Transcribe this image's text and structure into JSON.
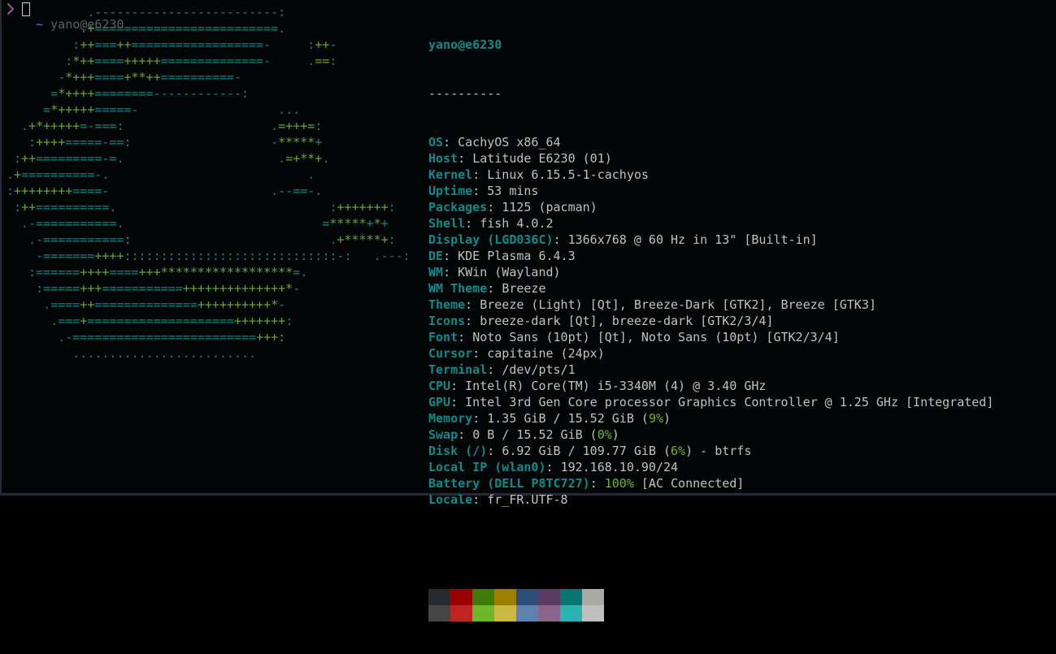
{
  "colors": {
    "bg": "#020506",
    "fg": "#bec3be",
    "teal": "#0c8b8b",
    "green": "#6fb71f",
    "artteal": "#0f8787",
    "artgreen": "#65aa1c",
    "dim": "#58625f",
    "blue": "#4b7fc9",
    "magenta": "#9f549b",
    "cursor": "#c9cccc",
    "border": "#222b36"
  },
  "terminal": {
    "fetch": {
      "title": "yano@e6230",
      "separator": "----------"
    },
    "info": [
      {
        "label": "OS",
        "value": [
          [
            "fg",
            "CachyOS x86_64"
          ]
        ]
      },
      {
        "label": "Host",
        "value": [
          [
            "fg",
            "Latitude E6230 (01)"
          ]
        ]
      },
      {
        "label": "Kernel",
        "value": [
          [
            "fg",
            "Linux 6.15.5-1-cachyos"
          ]
        ]
      },
      {
        "label": "Uptime",
        "value": [
          [
            "fg",
            "53 mins"
          ]
        ]
      },
      {
        "label": "Packages",
        "value": [
          [
            "fg",
            "1125 (pacman)"
          ]
        ]
      },
      {
        "label": "Shell",
        "value": [
          [
            "fg",
            "fish 4.0.2"
          ]
        ]
      },
      {
        "label": "Display (LGD036C)",
        "value": [
          [
            "fg",
            "1366x768 @ 60 Hz in 13\" [Built-in]"
          ]
        ]
      },
      {
        "label": "DE",
        "value": [
          [
            "fg",
            "KDE Plasma 6.4.3"
          ]
        ]
      },
      {
        "label": "WM",
        "value": [
          [
            "fg",
            "KWin (Wayland)"
          ]
        ]
      },
      {
        "label": "WM Theme",
        "value": [
          [
            "fg",
            "Breeze"
          ]
        ]
      },
      {
        "label": "Theme",
        "value": [
          [
            "fg",
            "Breeze (Light) [Qt], Breeze-Dark [GTK2], Breeze [GTK3]"
          ]
        ]
      },
      {
        "label": "Icons",
        "value": [
          [
            "fg",
            "breeze-dark [Qt], breeze-dark [GTK2/3/4]"
          ]
        ]
      },
      {
        "label": "Font",
        "value": [
          [
            "fg",
            "Noto Sans (10pt) [Qt], Noto Sans (10pt) [GTK2/3/4]"
          ]
        ]
      },
      {
        "label": "Cursor",
        "value": [
          [
            "fg",
            "capitaine (24px)"
          ]
        ]
      },
      {
        "label": "Terminal",
        "value": [
          [
            "fg",
            "/dev/pts/1"
          ]
        ]
      },
      {
        "label": "CPU",
        "value": [
          [
            "fg",
            "Intel(R) Core(TM) i5-3340M (4) @ 3.40 GHz"
          ]
        ]
      },
      {
        "label": "GPU",
        "value": [
          [
            "fg",
            "Intel 3rd Gen Core processor Graphics Controller @ 1.25 GHz [Integrated]"
          ]
        ]
      },
      {
        "label": "Memory",
        "value": [
          [
            "fg",
            "1.35 GiB / 15.52 GiB ("
          ],
          [
            "green",
            "9%"
          ],
          [
            "fg",
            ")"
          ]
        ]
      },
      {
        "label": "Swap",
        "value": [
          [
            "fg",
            "0 B / 15.52 GiB ("
          ],
          [
            "green",
            "0%"
          ],
          [
            "fg",
            ")"
          ]
        ]
      },
      {
        "label": "Disk (/)",
        "value": [
          [
            "fg",
            "6.92 GiB / 109.77 GiB ("
          ],
          [
            "green",
            "6%"
          ],
          [
            "fg",
            ") - btrfs"
          ]
        ]
      },
      {
        "label": "Local IP (wlan0)",
        "value": [
          [
            "fg",
            "192.168.10.90/24"
          ]
        ]
      },
      {
        "label": "Battery (DELL P8TC727)",
        "value": [
          [
            "green",
            "100%"
          ],
          [
            "fg",
            " [AC Connected]"
          ]
        ]
      },
      {
        "label": "Locale",
        "value": [
          [
            "fg",
            "fr_FR.UTF-8"
          ]
        ]
      }
    ],
    "palette": [
      [
        "#252c2f",
        "#9b0000",
        "#3e7b07",
        "#9c7e00",
        "#2a4f7c",
        "#5a3c62",
        "#097571",
        "#a8aaa5"
      ],
      [
        "#454545",
        "#bf2421",
        "#6eb62a",
        "#cbb842",
        "#5e82ad",
        "#8a6589",
        "#2bb3b2",
        "#bfbfbf"
      ]
    ],
    "prompt": {
      "cwd": "~",
      "user_host": "yano@e6230",
      "symbol": "❯"
    },
    "art": [
      [
        [
          "d",
          "           ."
        ],
        [
          "t",
          "-------------------------:"
        ]
      ],
      [
        [
          "d",
          "          ."
        ],
        [
          "g",
          "+"
        ],
        [
          "t",
          "========================="
        ],
        [
          "d",
          "."
        ]
      ],
      [
        [
          "t",
          "         :"
        ],
        [
          "g",
          "++"
        ],
        [
          "t",
          "==="
        ],
        [
          "g",
          "++"
        ],
        [
          "t",
          "==================-"
        ],
        [
          "d",
          "     "
        ],
        [
          "t",
          ":"
        ],
        [
          "g",
          "++"
        ],
        [
          "t",
          "-"
        ]
      ],
      [
        [
          "t",
          "        :"
        ],
        [
          "g",
          "*++"
        ],
        [
          "t",
          "===="
        ],
        [
          "g",
          "+++++"
        ],
        [
          "t",
          "==============-"
        ],
        [
          "d",
          "     ."
        ],
        [
          "g",
          "=="
        ],
        [
          "t",
          ":"
        ]
      ],
      [
        [
          "t",
          "       -"
        ],
        [
          "g",
          "*+++"
        ],
        [
          "t",
          "===="
        ],
        [
          "g",
          "+**++"
        ],
        [
          "t",
          "==========-"
        ]
      ],
      [
        [
          "t",
          "      ="
        ],
        [
          "g",
          "*++++"
        ],
        [
          "t",
          "========------------:"
        ]
      ],
      [
        [
          "t",
          "     ="
        ],
        [
          "g",
          "*+++++"
        ],
        [
          "t",
          "=====-"
        ],
        [
          "d",
          "                   ..."
        ]
      ],
      [
        [
          "d",
          "  ."
        ],
        [
          "g",
          "+*+++++"
        ],
        [
          "t",
          "=-===:"
        ],
        [
          "d",
          "                    ."
        ],
        [
          "g",
          "=+++="
        ],
        [
          "t",
          ":"
        ]
      ],
      [
        [
          "t",
          "   :"
        ],
        [
          "g",
          "++++"
        ],
        [
          "t",
          "=====-==:"
        ],
        [
          "d",
          "                   "
        ],
        [
          "t",
          "-"
        ],
        [
          "g",
          "*****"
        ],
        [
          "t",
          "+"
        ]
      ],
      [
        [
          "t",
          " :"
        ],
        [
          "g",
          "++"
        ],
        [
          "t",
          "=========-="
        ],
        [
          "d",
          "."
        ],
        [
          "d",
          "                     ."
        ],
        [
          "g",
          "=+**+"
        ],
        [
          "d",
          "."
        ]
      ],
      [
        [
          "d",
          "."
        ],
        [
          "g",
          "+"
        ],
        [
          "t",
          "==========-"
        ],
        [
          "d",
          "."
        ],
        [
          "d",
          "                           ."
        ]
      ],
      [
        [
          "t",
          ":"
        ],
        [
          "g",
          "++++++++"
        ],
        [
          "t",
          "====-"
        ],
        [
          "d",
          "                      ."
        ],
        [
          "t",
          "--==-"
        ],
        [
          "d",
          "."
        ]
      ],
      [
        [
          "t",
          " :"
        ],
        [
          "g",
          "++"
        ],
        [
          "t",
          "=========="
        ],
        [
          "d",
          "."
        ],
        [
          "d",
          "                             "
        ],
        [
          "t",
          ":"
        ],
        [
          "g",
          "+++++++"
        ],
        [
          "t",
          ":"
        ]
      ],
      [
        [
          "d",
          "  ."
        ],
        [
          "t",
          "-==========="
        ],
        [
          "d",
          "."
        ],
        [
          "d",
          "                           "
        ],
        [
          "t",
          "="
        ],
        [
          "g",
          "*****"
        ],
        [
          "t",
          "+"
        ],
        [
          "g",
          "*"
        ],
        [
          "t",
          "+"
        ]
      ],
      [
        [
          "d",
          "   ."
        ],
        [
          "t",
          "-===========:"
        ],
        [
          "d",
          "                           ."
        ],
        [
          "g",
          "+*****+"
        ],
        [
          "t",
          ":"
        ]
      ],
      [
        [
          "t",
          "    -======="
        ],
        [
          "g",
          "++++"
        ],
        [
          "t",
          ":::::::::::::::::::::::::::::-:"
        ],
        [
          "d",
          "   .---:"
        ]
      ],
      [
        [
          "t",
          "   :======"
        ],
        [
          "g",
          "++++"
        ],
        [
          "t",
          "===="
        ],
        [
          "g",
          "+++******************"
        ],
        [
          "t",
          "="
        ],
        [
          "d",
          "."
        ]
      ],
      [
        [
          "t",
          "    :====="
        ],
        [
          "g",
          "+++"
        ],
        [
          "t",
          "==========="
        ],
        [
          "g",
          "++++++++++++++*"
        ],
        [
          "t",
          "-"
        ]
      ],
      [
        [
          "d",
          "     ."
        ],
        [
          "t",
          "===="
        ],
        [
          "g",
          "++"
        ],
        [
          "t",
          "=============="
        ],
        [
          "g",
          "++++++++++*"
        ],
        [
          "t",
          "-"
        ]
      ],
      [
        [
          "d",
          "      ."
        ],
        [
          "t",
          "==="
        ],
        [
          "g",
          "+"
        ],
        [
          "t",
          "===================="
        ],
        [
          "g",
          "+++++++"
        ],
        [
          "t",
          ":"
        ]
      ],
      [
        [
          "d",
          "       ."
        ],
        [
          "t",
          "-========================="
        ],
        [
          "g",
          "+++:"
        ]
      ],
      [
        [
          "d",
          "         ........................."
        ]
      ]
    ]
  }
}
